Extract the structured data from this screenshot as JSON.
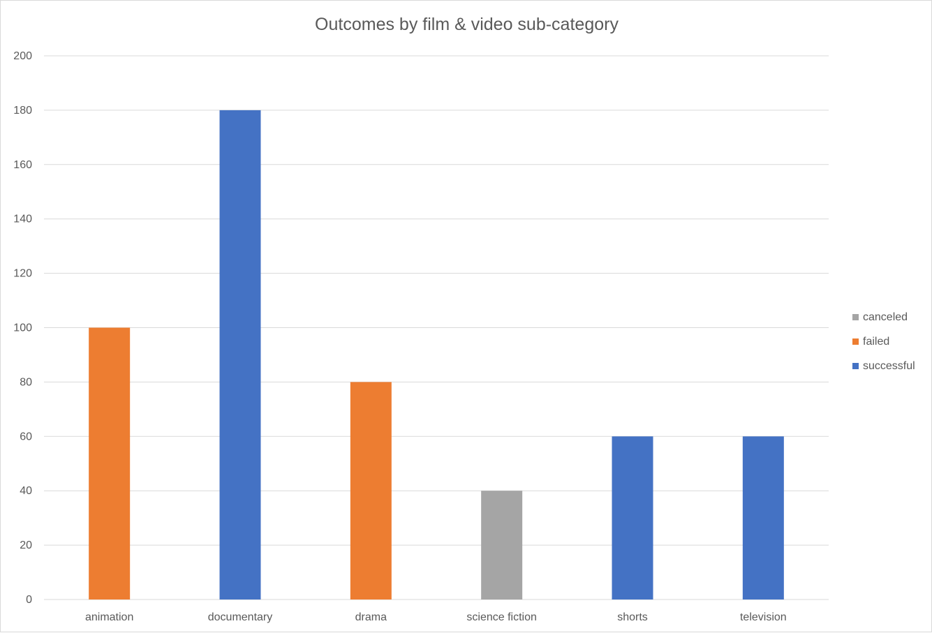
{
  "chart_data": {
    "type": "bar",
    "title": "Outcomes by film & video sub-category",
    "xlabel": "",
    "ylabel": "",
    "ylim": [
      0,
      200
    ],
    "ytick_step": 20,
    "grid": true,
    "legend_position": "right",
    "categories": [
      "animation",
      "documentary",
      "drama",
      "science fiction",
      "shorts",
      "television"
    ],
    "series": [
      {
        "name": "canceled",
        "color": "#a5a5a5",
        "values": [
          null,
          null,
          null,
          40,
          null,
          null
        ]
      },
      {
        "name": "failed",
        "color": "#ed7d31",
        "values": [
          100,
          null,
          80,
          null,
          null,
          null
        ]
      },
      {
        "name": "successful",
        "color": "#4472c4",
        "values": [
          null,
          180,
          null,
          null,
          60,
          60
        ]
      }
    ]
  }
}
